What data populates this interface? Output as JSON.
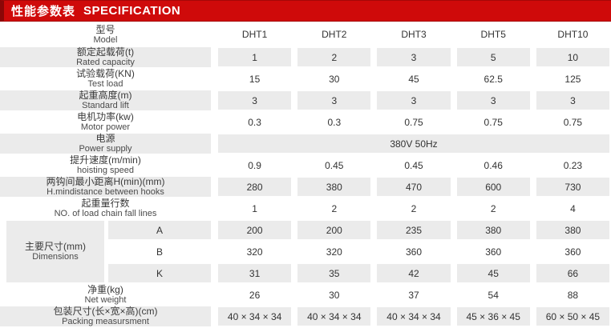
{
  "header": {
    "title_zh": "性能参数表",
    "title_en": "SPECIFICATION"
  },
  "colors": {
    "header_red": "#cf0a0a",
    "header_red_dark": "#8b0707",
    "stripe_gray": "#ebebeb"
  },
  "rows": [
    {
      "zh": "型号",
      "en": "Model",
      "cells": [
        "DHT1",
        "DHT2",
        "DHT3",
        "DHT5",
        "DHT10"
      ]
    },
    {
      "zh": "额定起载荷(t)",
      "en": "Rated capacity",
      "cells": [
        "1",
        "2",
        "3",
        "5",
        "10"
      ]
    },
    {
      "zh": "试验载荷(KN)",
      "en": "Test load",
      "cells": [
        "15",
        "30",
        "45",
        "62.5",
        "125"
      ]
    },
    {
      "zh": "起重高度(m)",
      "en": "Standard lift",
      "cells": [
        "3",
        "3",
        "3",
        "3",
        "3"
      ]
    },
    {
      "zh": "电机功率(kw)",
      "en": "Motor power",
      "cells": [
        "0.3",
        "0.3",
        "0.75",
        "0.75",
        "0.75"
      ]
    },
    {
      "zh": "电源",
      "en": "Power supply",
      "span": "380V  50Hz"
    },
    {
      "zh": "提升速度(m/min)",
      "en": "hoisting speed",
      "cells": [
        "0.9",
        "0.45",
        "0.45",
        "0.46",
        "0.23"
      ]
    },
    {
      "zh": "两钩间最小距离H(min)(mm)",
      "en": "H.mindistance between hooks",
      "cells": [
        "280",
        "380",
        "470",
        "600",
        "730"
      ]
    },
    {
      "zh": "起重量行数",
      "en": "NO. of load chain fall lines",
      "cells": [
        "1",
        "2",
        "2",
        "2",
        "4"
      ]
    },
    {
      "zh": "主要尺寸(mm)",
      "en": "Dimensions",
      "subrows": [
        {
          "key": "A",
          "cells": [
            "200",
            "200",
            "235",
            "380",
            "380"
          ]
        },
        {
          "key": "B",
          "cells": [
            "320",
            "320",
            "360",
            "360",
            "360"
          ]
        },
        {
          "key": "K",
          "cells": [
            "31",
            "35",
            "42",
            "45",
            "66"
          ]
        }
      ]
    },
    {
      "zh": "净重(kg)",
      "en": "Net weight",
      "cells": [
        "26",
        "30",
        "37",
        "54",
        "88"
      ]
    },
    {
      "zh": "包装尺寸(长×宽×高)(cm)",
      "en": "Packing measursment",
      "cells": [
        "40 × 34 × 34",
        "40 × 34 × 34",
        "40 × 34 × 34",
        "45 × 36 × 45",
        "60 × 50 × 45"
      ]
    }
  ]
}
